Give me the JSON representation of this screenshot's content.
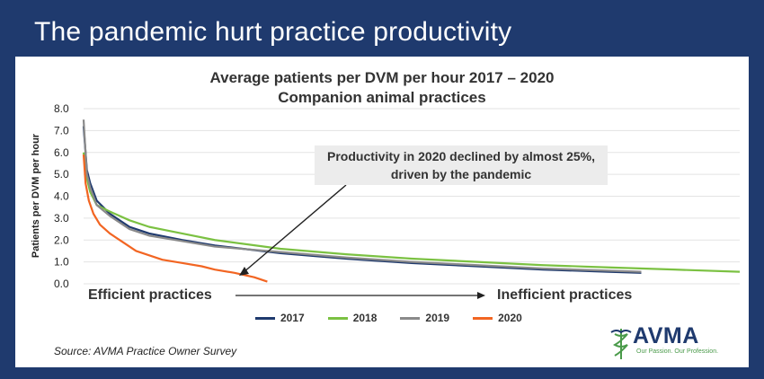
{
  "banner": {
    "title": "The pandemic hurt practice productivity"
  },
  "chart_data": {
    "type": "line",
    "title": "Average patients per DVM per hour 2017 – 2020",
    "subtitle": "Companion animal practices",
    "ylabel": "Patients per DVM per hour",
    "ylim": [
      0,
      8
    ],
    "yticks": [
      "0.0",
      "1.0",
      "2.0",
      "3.0",
      "4.0",
      "5.0",
      "6.0",
      "7.0",
      "8.0"
    ],
    "x_left_label": "Efficient practices",
    "x_right_label": "Inefficient practices",
    "xlim": [
      0,
      1
    ],
    "grid": true,
    "legend_position": "bottom",
    "annotation": "Productivity in 2020 declined by almost 25%, driven by the pandemic",
    "series": [
      {
        "name": "2017",
        "color": "#1f3a6e",
        "x": [
          0.0,
          0.005,
          0.01,
          0.02,
          0.04,
          0.07,
          0.1,
          0.15,
          0.2,
          0.3,
          0.4,
          0.5,
          0.6,
          0.7,
          0.8,
          0.85
        ],
        "y": [
          7.2,
          5.2,
          4.6,
          3.8,
          3.2,
          2.6,
          2.3,
          2.0,
          1.75,
          1.4,
          1.15,
          0.95,
          0.8,
          0.65,
          0.55,
          0.5
        ]
      },
      {
        "name": "2018",
        "color": "#7bc142",
        "x": [
          0.0,
          0.005,
          0.01,
          0.02,
          0.04,
          0.07,
          0.1,
          0.15,
          0.2,
          0.3,
          0.4,
          0.5,
          0.6,
          0.7,
          0.8,
          0.9,
          1.0
        ],
        "y": [
          6.0,
          4.8,
          4.2,
          3.6,
          3.3,
          2.9,
          2.6,
          2.3,
          2.0,
          1.6,
          1.35,
          1.15,
          1.0,
          0.85,
          0.75,
          0.65,
          0.55
        ]
      },
      {
        "name": "2019",
        "color": "#8a8a8a",
        "x": [
          0.0,
          0.005,
          0.01,
          0.02,
          0.04,
          0.07,
          0.1,
          0.15,
          0.2,
          0.3,
          0.4,
          0.5,
          0.6,
          0.7,
          0.8,
          0.85
        ],
        "y": [
          7.5,
          5.0,
          4.4,
          3.6,
          3.1,
          2.5,
          2.2,
          1.95,
          1.7,
          1.45,
          1.2,
          1.0,
          0.85,
          0.7,
          0.6,
          0.55
        ]
      },
      {
        "name": "2020",
        "color": "#f26522",
        "x": [
          0.0,
          0.003,
          0.008,
          0.015,
          0.025,
          0.04,
          0.06,
          0.08,
          0.1,
          0.12,
          0.15,
          0.18,
          0.2,
          0.23,
          0.26,
          0.28
        ],
        "y": [
          5.9,
          4.6,
          3.8,
          3.2,
          2.7,
          2.3,
          1.9,
          1.5,
          1.3,
          1.1,
          0.95,
          0.8,
          0.65,
          0.5,
          0.3,
          0.1
        ]
      }
    ]
  },
  "source": "Source: AVMA Practice Owner Survey",
  "logo": {
    "name": "AVMA",
    "tagline": "Our Passion. Our Profession.",
    "color": "#1f3a6e"
  }
}
